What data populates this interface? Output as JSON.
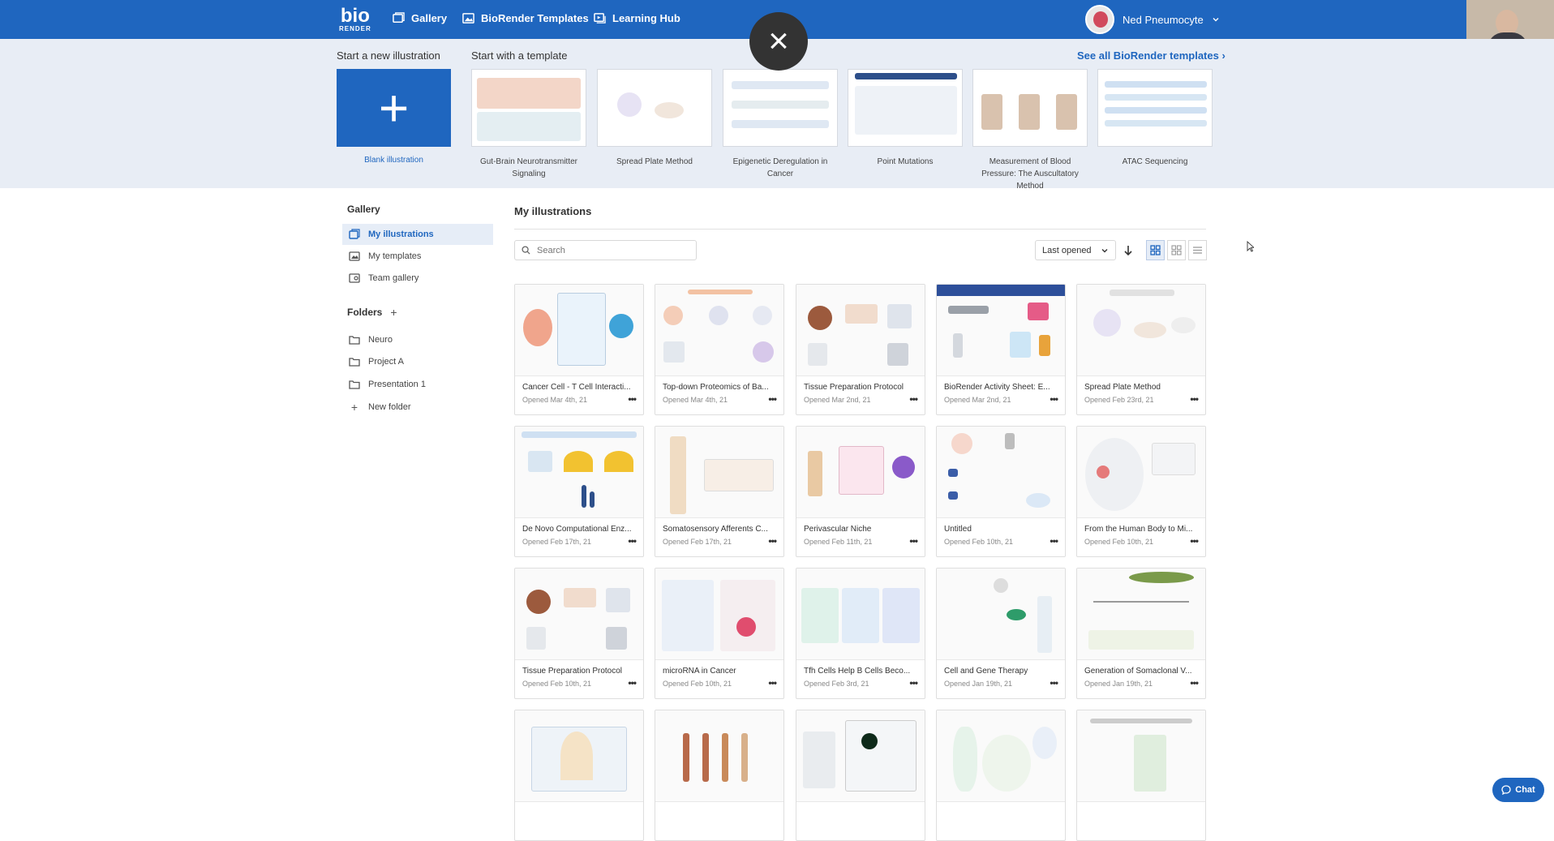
{
  "app": {
    "logo_top": "bio",
    "logo_bottom": "RENDER"
  },
  "nav": {
    "gallery": "Gallery",
    "templates": "BioRender Templates",
    "learning": "Learning Hub"
  },
  "user": {
    "name": "Ned Pneumocyte"
  },
  "template_band": {
    "new_title": "Start a new illustration",
    "template_title": "Start with a template",
    "see_all": "See all BioRender templates",
    "blank_label": "Blank illustration",
    "templates": [
      {
        "label": "Gut-Brain Neurotransmitter Signaling"
      },
      {
        "label": "Spread Plate Method"
      },
      {
        "label": "Epigenetic Deregulation in Cancer"
      },
      {
        "label": "Point Mutations"
      },
      {
        "label": "Measurement of Blood Pressure: The Auscultatory Method"
      },
      {
        "label": "ATAC Sequencing"
      }
    ]
  },
  "sidebar": {
    "gallery_heading": "Gallery",
    "items": [
      {
        "label": "My illustrations"
      },
      {
        "label": "My templates"
      },
      {
        "label": "Team gallery"
      }
    ],
    "folders_heading": "Folders",
    "folders": [
      {
        "label": "Neuro"
      },
      {
        "label": "Project A"
      },
      {
        "label": "Presentation 1"
      },
      {
        "label": "New folder"
      }
    ]
  },
  "main": {
    "title": "My illustrations",
    "search_placeholder": "Search",
    "sort_label": "Last opened",
    "cards": [
      {
        "title": "Cancer Cell - T Cell Interacti...",
        "date": "Opened Mar 4th, 21"
      },
      {
        "title": "Top-down Proteomics of Ba...",
        "date": "Opened Mar 4th, 21"
      },
      {
        "title": "Tissue Preparation Protocol",
        "date": "Opened Mar 2nd, 21"
      },
      {
        "title": "BioRender Activity Sheet: E...",
        "date": "Opened Mar 2nd, 21"
      },
      {
        "title": "Spread Plate Method",
        "date": "Opened Feb 23rd, 21"
      },
      {
        "title": "De Novo Computational Enz...",
        "date": "Opened Feb 17th, 21"
      },
      {
        "title": "Somatosensory Afferents C...",
        "date": "Opened Feb 17th, 21"
      },
      {
        "title": "Perivascular Niche",
        "date": "Opened Feb 11th, 21"
      },
      {
        "title": "Untitled",
        "date": "Opened Feb 10th, 21"
      },
      {
        "title": "From the Human Body to Mi...",
        "date": "Opened Feb 10th, 21"
      },
      {
        "title": "Tissue Preparation Protocol",
        "date": "Opened Feb 10th, 21"
      },
      {
        "title": "microRNA in Cancer",
        "date": "Opened Feb 10th, 21"
      },
      {
        "title": "Tfh Cells Help B Cells Beco...",
        "date": "Opened Feb 3rd, 21"
      },
      {
        "title": "Cell and Gene Therapy",
        "date": "Opened Jan 19th, 21"
      },
      {
        "title": "Generation of Somaclonal V...",
        "date": "Opened Jan 19th, 21"
      },
      {
        "title": "",
        "date": ""
      },
      {
        "title": "",
        "date": ""
      },
      {
        "title": "",
        "date": ""
      },
      {
        "title": "",
        "date": ""
      },
      {
        "title": "",
        "date": ""
      }
    ]
  },
  "chat": {
    "label": "Chat"
  },
  "colors": {
    "brand": "#1f66bf",
    "band": "#e8edf5"
  }
}
